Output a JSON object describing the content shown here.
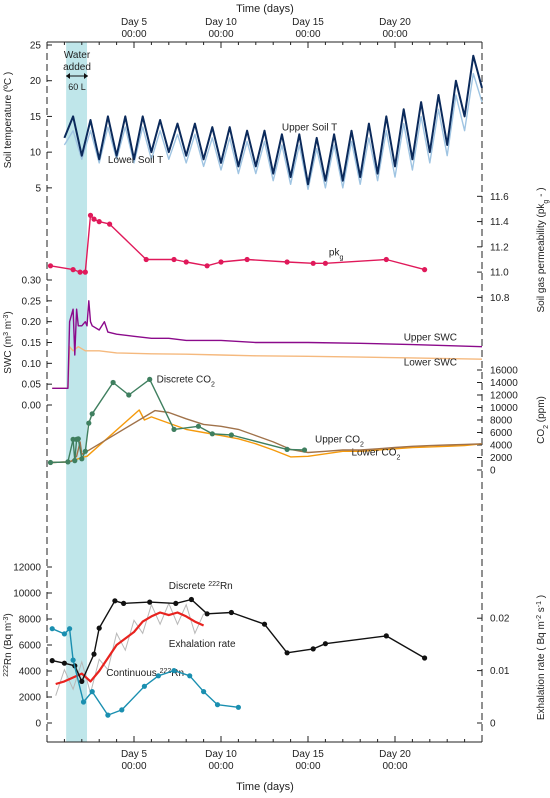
{
  "figure": {
    "time_axis_label": "Time (days)",
    "time_ticks": [
      {
        "day": 5,
        "line1": "Day 5",
        "line2": "00:00"
      },
      {
        "day": 10,
        "line1": "Day 10",
        "line2": "00:00"
      },
      {
        "day": 15,
        "line1": "Day 15",
        "line2": "00:00"
      },
      {
        "day": 20,
        "line1": "Day 20",
        "line2": "00:00"
      }
    ],
    "annotation": {
      "line1": "Water",
      "line2": "added",
      "volume": "60 L"
    },
    "colors": {
      "shade": "#bfe6ea",
      "upper_soil_t": "#0b2a5b",
      "lower_soil_t": "#9fc4e2",
      "pkg": "#e0195a",
      "upper_swc": "#8b0a8b",
      "lower_swc": "#f5b97e",
      "discrete_co2": "#3f7f5f",
      "upper_co2": "#a0724a",
      "lower_co2": "#f59a0c",
      "discrete_rn": "#111111",
      "continuous_rn": "#e8231f",
      "continuous_rn_raw": "#b8b8b8",
      "exhalation": "#1a8fb0"
    }
  },
  "chart_data": [
    {
      "type": "line",
      "panel": "soil-temperature",
      "ylabel": "Soil temperature (ºC )",
      "ylim": [
        4,
        25
      ],
      "yticks": [
        5,
        10,
        15,
        20,
        25
      ],
      "xlim": [
        0,
        25
      ],
      "series": [
        {
          "name": "Upper Soil T",
          "x": [
            1,
            1.5,
            2,
            2.5,
            3,
            3.5,
            4,
            4.5,
            5,
            5.5,
            6,
            6.5,
            7,
            7.5,
            8,
            8.5,
            9,
            9.5,
            10,
            10.5,
            11,
            11.5,
            12,
            12.5,
            13,
            13.5,
            14,
            14.5,
            15,
            15.5,
            16,
            16.5,
            17,
            17.5,
            18,
            18.5,
            19,
            19.5,
            20,
            20.5,
            21,
            21.5,
            22,
            22.5,
            23,
            23.5,
            24,
            24.5,
            25
          ],
          "values": [
            12,
            15,
            9.5,
            14.5,
            9,
            15,
            9.5,
            15,
            9,
            15,
            10,
            14.5,
            10,
            14,
            9.5,
            14,
            9,
            13.5,
            8.5,
            13.5,
            8,
            13,
            8,
            13,
            7,
            12.5,
            6.5,
            12.5,
            5.5,
            12,
            6,
            12.5,
            6,
            13,
            6.5,
            14,
            7,
            15,
            8,
            16,
            9,
            17,
            10,
            18,
            11,
            20,
            15,
            23.5,
            19
          ]
        },
        {
          "name": "Lower Soil T",
          "x": [
            1,
            1.5,
            2,
            2.5,
            3,
            3.5,
            4,
            4.5,
            5,
            5.5,
            6,
            6.5,
            7,
            7.5,
            8,
            8.5,
            9,
            9.5,
            10,
            10.5,
            11,
            11.5,
            12,
            12.5,
            13,
            13.5,
            14,
            14.5,
            15,
            15.5,
            16,
            16.5,
            17,
            17.5,
            18,
            18.5,
            19,
            19.5,
            20,
            20.5,
            21,
            21.5,
            22,
            22.5,
            23,
            23.5,
            24,
            24.5,
            25
          ],
          "values": [
            11,
            13,
            9,
            13,
            8.5,
            13.5,
            9,
            13.5,
            8.5,
            13.5,
            9,
            13,
            9,
            12.5,
            8.5,
            12.5,
            8,
            12,
            7.5,
            12,
            7,
            11.5,
            7,
            11.5,
            6,
            11,
            5.5,
            11,
            4.8,
            10.5,
            5,
            11,
            5,
            11.5,
            5.5,
            12,
            6,
            13,
            6.5,
            14,
            7.5,
            15,
            8.5,
            16,
            9.5,
            18,
            13,
            21,
            17
          ]
        }
      ]
    },
    {
      "type": "line",
      "panel": "soil-gas-permeability",
      "ylabel": "Soil gas permeability (pk",
      "ylabel_sub": "g",
      "ylabel_end": " - )",
      "ylim": [
        10.7,
        11.65
      ],
      "yticks": [
        10.8,
        11.0,
        11.2,
        11.4,
        11.6
      ],
      "series": [
        {
          "name": "pk",
          "name_sub": "g",
          "x": [
            0.2,
            1.5,
            1.9,
            2.2,
            2.5,
            2.7,
            3.0,
            3.6,
            5.7,
            7.3,
            8.0,
            9.2,
            10.0,
            11.5,
            13.8,
            15.3,
            16.0,
            19.5,
            21.7
          ],
          "values": [
            11.05,
            11.02,
            11.0,
            11.0,
            11.45,
            11.42,
            11.4,
            11.38,
            11.1,
            11.1,
            11.08,
            11.05,
            11.08,
            11.1,
            11.08,
            11.07,
            11.07,
            11.1,
            11.02
          ]
        }
      ]
    },
    {
      "type": "line",
      "panel": "swc",
      "ylabel": "SWC  (m",
      "ylabel_sup1": "3",
      "ylabel_mid": " m",
      "ylabel_sup2": "-3",
      "ylabel_end": ")",
      "ylim": [
        0,
        0.3
      ],
      "yticks": [
        0.0,
        0.05,
        0.1,
        0.15,
        0.2,
        0.25,
        0.3
      ],
      "series": [
        {
          "name": "Upper SWC",
          "x": [
            0.3,
            1.2,
            1.3,
            1.5,
            1.6,
            1.7,
            1.8,
            2.0,
            2.2,
            2.3,
            2.4,
            2.5,
            2.6,
            3.0,
            3.3,
            3.5,
            4,
            5,
            6,
            7,
            8,
            10,
            12,
            15,
            18,
            21,
            25
          ],
          "values": [
            0.04,
            0.04,
            0.2,
            0.23,
            0.12,
            0.23,
            0.19,
            0.19,
            0.2,
            0.19,
            0.25,
            0.2,
            0.19,
            0.18,
            0.2,
            0.175,
            0.17,
            0.165,
            0.16,
            0.16,
            0.155,
            0.155,
            0.15,
            0.15,
            0.148,
            0.145,
            0.14
          ]
        },
        {
          "name": "Lower SWC",
          "x": [
            0.3,
            1.2,
            1.3,
            1.5,
            1.8,
            2.2,
            2.5,
            3,
            4,
            6,
            8,
            10,
            12,
            15,
            18,
            21,
            25
          ],
          "values": [
            0.04,
            0.04,
            0.14,
            0.13,
            0.14,
            0.13,
            0.13,
            0.13,
            0.125,
            0.123,
            0.122,
            0.12,
            0.118,
            0.117,
            0.115,
            0.113,
            0.11
          ]
        }
      ]
    },
    {
      "type": "line",
      "panel": "co2",
      "ylabel": "CO",
      "ylabel_sub": "2",
      "ylabel_end": " (ppm)",
      "ylim": [
        0,
        16000
      ],
      "yticks": [
        0,
        2000,
        4000,
        6000,
        8000,
        10000,
        12000,
        14000,
        16000
      ],
      "series": [
        {
          "name": "Discrete CO",
          "name_sub": "2",
          "x": [
            0.2,
            1.2,
            1.5,
            1.6,
            1.7,
            1.8,
            2.0,
            2.2,
            2.4,
            2.6,
            3.8,
            4.7,
            5.9,
            7.3,
            8.7,
            9.5,
            10.6,
            13.8,
            14.8
          ],
          "values": [
            1200,
            1300,
            4900,
            1500,
            4900,
            5000,
            1800,
            3000,
            7500,
            9000,
            14000,
            12000,
            14500,
            6500,
            7000,
            5800,
            5600,
            3300,
            3200
          ]
        },
        {
          "name": "Upper CO",
          "name_sub": "2",
          "x": [
            0.2,
            1.2,
            1.4,
            1.7,
            1.9,
            2.0,
            2.3,
            6.2,
            7,
            8,
            9,
            10,
            11,
            12,
            13,
            14,
            15,
            16,
            17,
            18,
            19,
            20,
            21,
            22,
            23,
            24,
            25
          ],
          "values": [
            1200,
            1300,
            1400,
            2200,
            4500,
            2500,
            3000,
            9500,
            9200,
            8200,
            7300,
            7000,
            6500,
            5500,
            4500,
            3300,
            2800,
            3000,
            3200,
            3200,
            3400,
            3600,
            3800,
            3900,
            4000,
            4100,
            4200
          ]
        },
        {
          "name": "Lower CO",
          "name_sub": "2",
          "x": [
            0.2,
            1.2,
            1.5,
            2.0,
            2.3,
            5.3,
            5.6,
            6,
            7,
            8,
            9,
            10,
            11,
            12,
            13,
            14,
            15,
            16,
            17,
            18,
            19,
            20,
            21,
            22,
            23,
            24,
            25
          ],
          "values": [
            1200,
            1300,
            1500,
            2000,
            2200,
            9600,
            8000,
            8500,
            7500,
            6500,
            6000,
            5500,
            5000,
            4200,
            3200,
            2100,
            2200,
            2600,
            3000,
            3000,
            3200,
            3400,
            3600,
            3700,
            3800,
            3900,
            4200
          ]
        }
      ]
    },
    {
      "type": "line",
      "panel": "radon",
      "ylabel": "Rn (Bq m",
      "ylabel_presup": "222",
      "ylabel_sup": "-3",
      "ylabel_end": ")",
      "ylim": [
        0,
        12000
      ],
      "yticks": [
        0,
        2000,
        4000,
        6000,
        8000,
        10000,
        12000
      ],
      "series": [
        {
          "name": "Discrete ",
          "name_sup": "222",
          "name_end": "Rn",
          "x": [
            0.3,
            1.0,
            1.6,
            2.0,
            2.7,
            3.0,
            3.9,
            4.4,
            5.9,
            7.4,
            8.3,
            9.2,
            10.6,
            12.5,
            13.8,
            15.3,
            16.0,
            19.5,
            21.7
          ],
          "values": [
            4800,
            4600,
            4400,
            3200,
            5300,
            7300,
            9400,
            9200,
            9300,
            9200,
            9500,
            8400,
            8500,
            7600,
            5400,
            5700,
            6100,
            6700,
            5000
          ]
        },
        {
          "name": "Continuous ",
          "name_sup": "222",
          "name_end": "Rn",
          "x": [
            0.5,
            1,
            1.5,
            2,
            2.5,
            3,
            3.5,
            4,
            4.5,
            5,
            5.5,
            6,
            6.5,
            7,
            7.5,
            8,
            8.5,
            9
          ],
          "values": [
            3000,
            3200,
            3500,
            3800,
            3200,
            4000,
            5000,
            6000,
            6500,
            7000,
            7800,
            8200,
            8500,
            8300,
            8500,
            8200,
            7800,
            7500
          ]
        }
      ]
    },
    {
      "type": "line",
      "panel": "exhalation",
      "ylabel": "Exhalation rate  ( Bq m",
      "ylabel_sup": "-2",
      "ylabel_mid": " s",
      "ylabel_sup2": "-1",
      "ylabel_end": " )",
      "ylim": [
        0,
        0.025
      ],
      "yticks": [
        0,
        0.01,
        0.02
      ],
      "series": [
        {
          "name": "Exhalation rate",
          "x": [
            0.3,
            1.0,
            1.3,
            1.5,
            2.1,
            2.6,
            3.5,
            4.3,
            5.6,
            6.4,
            7.3,
            8.2,
            9.0,
            9.8,
            11.0
          ],
          "values": [
            0.018,
            0.017,
            0.018,
            0.012,
            0.004,
            0.006,
            0.0015,
            0.0025,
            0.007,
            0.009,
            0.01,
            0.009,
            0.006,
            0.0035,
            0.003
          ]
        }
      ]
    }
  ]
}
